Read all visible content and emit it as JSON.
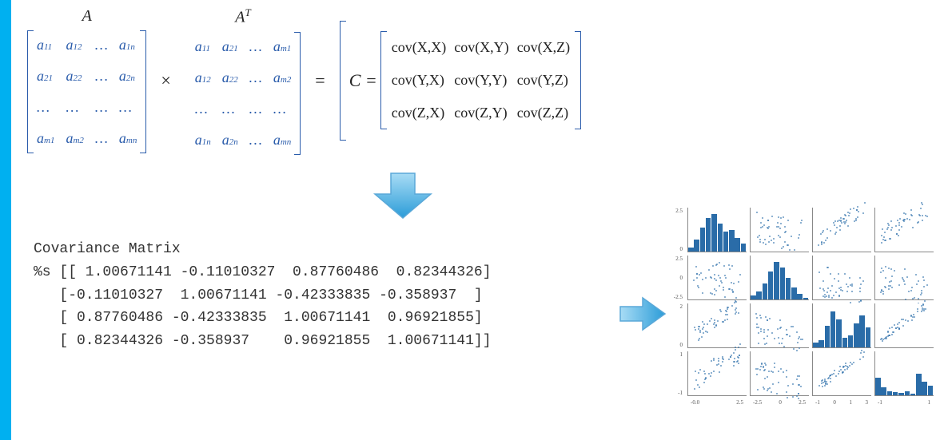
{
  "colors": {
    "accent": "#00b0f0",
    "matrix_text": "#2a5cab",
    "matrix_border": "#2a5cab",
    "body_text": "#333333",
    "plot_color": "#2a6ca8",
    "axis_color": "#888888",
    "arrow_fill_start": "#7cc8f2",
    "arrow_fill_end": "#1e90d8",
    "arrow_stroke": "#5aa8d8"
  },
  "labels": {
    "A": "A",
    "AT": "A",
    "AT_sup": "T",
    "times": "×",
    "equals": "=",
    "C_eq": "C =",
    "cov_title": "Covariance Matrix",
    "pct_s": "%s"
  },
  "matrix_A": {
    "rows": 4,
    "cols": 4,
    "cells": [
      [
        "a",
        "11"
      ],
      [
        "a",
        "12"
      ],
      [
        "…",
        ""
      ],
      [
        "a",
        "1n"
      ],
      [
        "a",
        "21"
      ],
      [
        "a",
        "22"
      ],
      [
        "…",
        ""
      ],
      [
        "a",
        "2n"
      ],
      [
        "…",
        ""
      ],
      [
        "…",
        ""
      ],
      [
        "…",
        ""
      ],
      [
        "…",
        ""
      ],
      [
        "a",
        "m1"
      ],
      [
        "a",
        "m2"
      ],
      [
        "…",
        ""
      ],
      [
        "a",
        "mn"
      ]
    ]
  },
  "matrix_AT": {
    "rows": 4,
    "cols": 4,
    "cells": [
      [
        "a",
        "11"
      ],
      [
        "a",
        "21"
      ],
      [
        "…",
        ""
      ],
      [
        "a",
        "m1"
      ],
      [
        "a",
        "12"
      ],
      [
        "a",
        "22"
      ],
      [
        "…",
        ""
      ],
      [
        "a",
        "m2"
      ],
      [
        "…",
        ""
      ],
      [
        "…",
        ""
      ],
      [
        "…",
        ""
      ],
      [
        "…",
        ""
      ],
      [
        "a",
        "1n"
      ],
      [
        "a",
        "2n"
      ],
      [
        "…",
        ""
      ],
      [
        "a",
        "mn"
      ]
    ]
  },
  "cov_symbolic": {
    "cells": [
      "cov(X,X)",
      "cov(X,Y)",
      "cov(X,Z)",
      "cov(Y,X)",
      "cov(Y,Y)",
      "cov(Y,Z)",
      "cov(Z,X)",
      "cov(Z,Y)",
      "cov(Z,Z)"
    ]
  },
  "cov_numeric": {
    "rows": [
      [
        " 1.00671141",
        "-0.11010327",
        " 0.87760486",
        " 0.82344326"
      ],
      [
        "-0.11010327",
        " 1.00671141",
        "-0.42333835",
        "-0.358937  "
      ],
      [
        " 0.87760486",
        "-0.42333835",
        " 1.00671141",
        " 0.96921855"
      ],
      [
        " 0.82344326",
        "-0.358937  ",
        " 0.96921855",
        " 1.00671141"
      ]
    ]
  },
  "pairplot": {
    "row_labels": [
      "0",
      "1",
      "2",
      "3"
    ],
    "yticks_per_row": [
      [
        "2.5",
        "0"
      ],
      [
        "2.5",
        "0",
        "-2.5"
      ],
      [
        "2",
        "0"
      ],
      [
        "1",
        "-1"
      ]
    ],
    "xticks_per_col": [
      [
        "-0.0",
        "2.5"
      ],
      [
        "-2.5",
        "0",
        "2.5"
      ],
      [
        "-1",
        "0",
        "1",
        "3"
      ],
      [
        "-1",
        "1"
      ]
    ],
    "hist_bars": [
      [
        0.1,
        0.3,
        0.6,
        0.85,
        0.95,
        0.7,
        0.5,
        0.55,
        0.35,
        0.2
      ],
      [
        0.1,
        0.2,
        0.4,
        0.7,
        0.95,
        0.8,
        0.55,
        0.3,
        0.15,
        0.05
      ],
      [
        0.12,
        0.18,
        0.55,
        0.9,
        0.7,
        0.25,
        0.3,
        0.6,
        0.8,
        0.5
      ],
      [
        0.45,
        0.2,
        0.1,
        0.08,
        0.06,
        0.1,
        0.05,
        0.55,
        0.35,
        0.25
      ]
    ],
    "scatter_corr": {
      "01": -0.11,
      "02": 0.88,
      "03": 0.82,
      "10": -0.11,
      "12": -0.42,
      "13": -0.36,
      "20": 0.88,
      "21": -0.42,
      "23": 0.97,
      "30": 0.82,
      "31": -0.36,
      "32": 0.97
    },
    "scatter_n": 50
  }
}
